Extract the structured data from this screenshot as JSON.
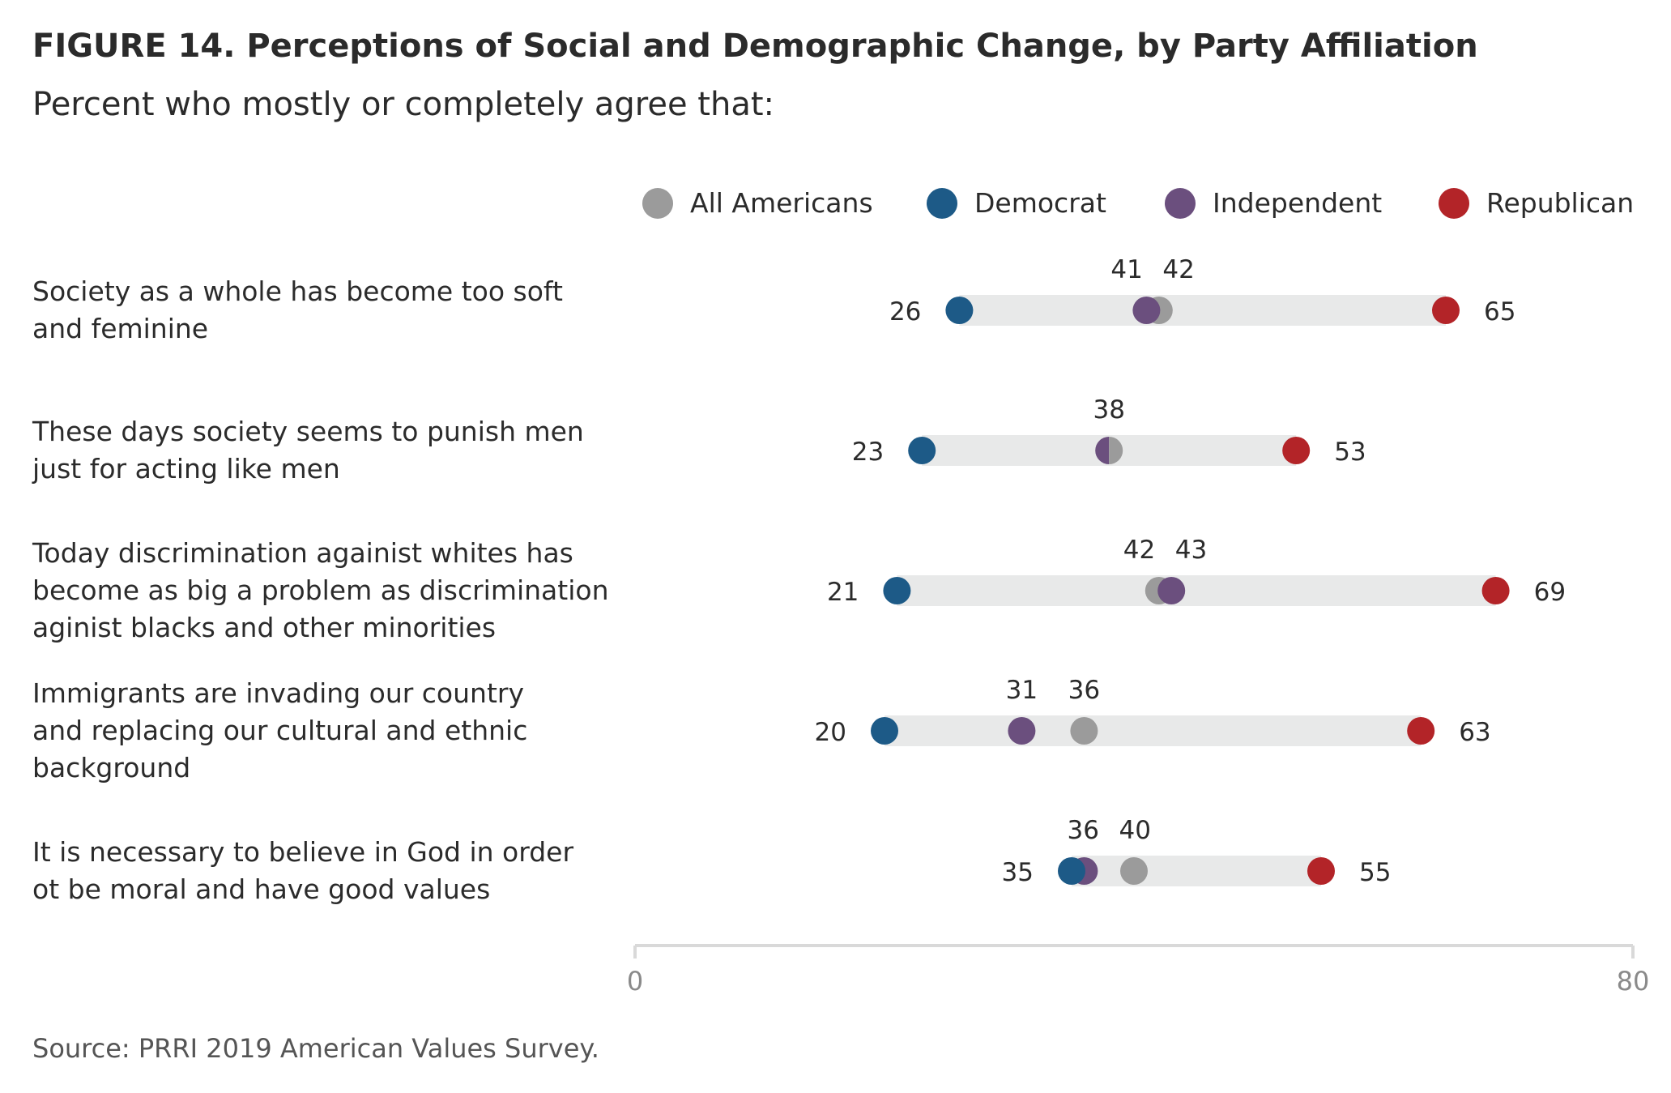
{
  "title": "FIGURE 14. Perceptions of Social and Demographic Change, by Party Affiliation",
  "subtitle": "Percent who mostly or completely agree that:",
  "source": "Source: PRRI 2019 American Values Survey.",
  "chart_data": {
    "type": "dot-range",
    "title": "FIGURE 14. Perceptions of Social and Demographic Change, by Party Affiliation",
    "subtitle": "Percent who mostly or completely agree that:",
    "xlim": [
      0,
      80
    ],
    "x_ticks": [
      "0",
      "80"
    ],
    "legend_position": "top-right",
    "series": [
      {
        "name": "All Americans",
        "color": "#9b9b9b"
      },
      {
        "name": "Democrat",
        "color": "#1d5a87"
      },
      {
        "name": "Independent",
        "color": "#6b4f7e"
      },
      {
        "name": "Republican",
        "color": "#b32428"
      }
    ],
    "categories": [
      {
        "label_lines": [
          "Society as a whole has become too soft",
          "and feminine"
        ],
        "values": {
          "All Americans": 42,
          "Democrat": 26,
          "Independent": 41,
          "Republican": 65
        }
      },
      {
        "label_lines": [
          "These days society seems to punish men",
          "just for acting like men"
        ],
        "values": {
          "All Americans": 38,
          "Democrat": 23,
          "Independent": 38,
          "Republican": 53
        }
      },
      {
        "label_lines": [
          "Today discrimination againist whites has",
          "become as big a problem as discrimination",
          "aginist blacks and other minorities"
        ],
        "values": {
          "All Americans": 42,
          "Democrat": 21,
          "Independent": 43,
          "Republican": 69
        }
      },
      {
        "label_lines": [
          "Immigrants are invading our country",
          "and replacing our cultural and ethnic",
          "background"
        ],
        "values": {
          "All Americans": 36,
          "Democrat": 20,
          "Independent": 31,
          "Republican": 63
        }
      },
      {
        "label_lines": [
          "It is necessary to believe in God in order",
          "ot be moral and have good values"
        ],
        "values": {
          "All Americans": 40,
          "Democrat": 35,
          "Independent": 36,
          "Republican": 55
        }
      }
    ]
  }
}
